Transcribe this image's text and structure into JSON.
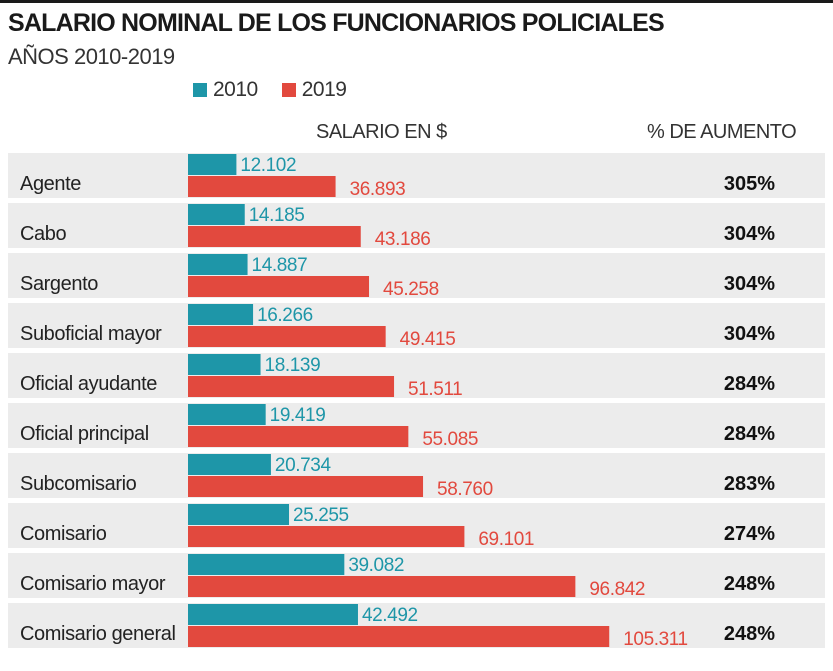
{
  "title": "SALARIO NOMINAL DE LOS FUNCIONARIOS POLICIALES",
  "subtitle": "AÑOS 2010-2019",
  "legend": [
    {
      "label": "2010",
      "color": "#1e96a8"
    },
    {
      "label": "2019",
      "color": "#e2493e"
    }
  ],
  "columns": {
    "salary": "SALARIO EN $",
    "increase": "% DE AUMENTO"
  },
  "chart_data": {
    "type": "bar",
    "orientation": "horizontal",
    "title": "SALARIO NOMINAL DE LOS FUNCIONARIOS POLICIALES",
    "subtitle": "AÑOS 2010-2019",
    "xlabel": "SALARIO EN $",
    "ylabel": "",
    "xlim": [
      0,
      110000
    ],
    "grid": false,
    "legend_position": "top",
    "categories": [
      "Agente",
      "Cabo",
      "Sargento",
      "Suboficial mayor",
      "Oficial ayudante",
      "Oficial principal",
      "Subcomisario",
      "Comisario",
      "Comisario mayor",
      "Comisario general"
    ],
    "series": [
      {
        "name": "2010",
        "color": "#1e96a8",
        "values": [
          12102,
          14185,
          14887,
          16266,
          18139,
          19419,
          20734,
          25255,
          39082,
          42492
        ],
        "labels": [
          "12.102",
          "14.185",
          "14.887",
          "16.266",
          "18.139",
          "19.419",
          "20.734",
          "25.255",
          "39.082",
          "42.492"
        ]
      },
      {
        "name": "2019",
        "color": "#e2493e",
        "values": [
          36893,
          43186,
          45258,
          49415,
          51511,
          55085,
          58760,
          69101,
          96842,
          105311
        ],
        "labels": [
          "36.893",
          "43.186",
          "45.258",
          "49.415",
          "51.511",
          "55.085",
          "58.760",
          "69.101",
          "96.842",
          "105.311"
        ]
      }
    ],
    "increase_pct": [
      "305%",
      "304%",
      "304%",
      "304%",
      "284%",
      "284%",
      "283%",
      "274%",
      "248%",
      "248%"
    ],
    "row_band_color": "#ececec"
  }
}
